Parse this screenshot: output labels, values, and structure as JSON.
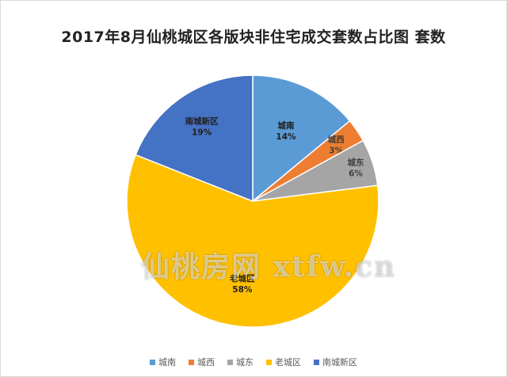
{
  "chart_data": {
    "type": "pie",
    "title": "2017年8月仙桃城区各版块非住宅成交套数占比图 套数",
    "series": [
      {
        "values": [
          {
            "label": "城南",
            "percent": "14%",
            "value": 14,
            "color": "#5B9BD5"
          },
          {
            "label": "城西",
            "percent": "3%",
            "value": 3,
            "color": "#ED7D31"
          },
          {
            "label": "城东",
            "percent": "6%",
            "value": 6,
            "color": "#A5A5A5"
          },
          {
            "label": "老城区",
            "percent": "58%",
            "value": 58,
            "color": "#FFC000"
          },
          {
            "label": "南城新区",
            "percent": "19%",
            "value": 19,
            "color": "#4472C4"
          }
        ]
      }
    ],
    "legend": {
      "position": "bottom",
      "items": [
        "城南",
        "城西",
        "城东",
        "老城区",
        "南城新区"
      ]
    }
  },
  "watermark": "仙桃房网 xtfw.cn"
}
